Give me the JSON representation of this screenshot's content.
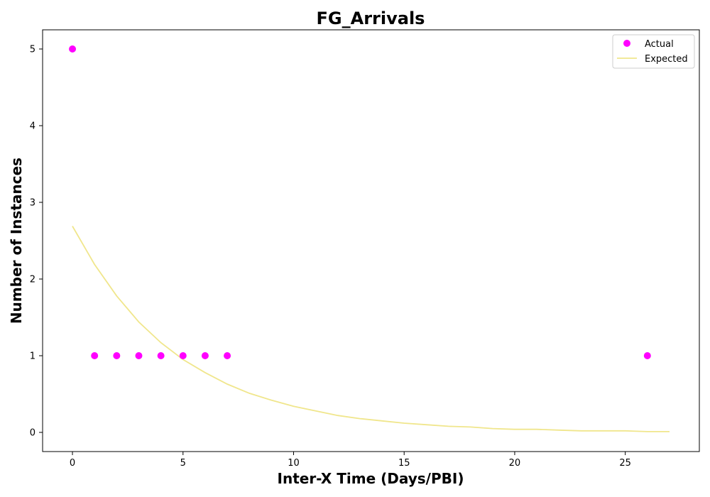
{
  "chart_data": {
    "type": "scatter",
    "title": "FG_Arrivals",
    "xlabel": "Inter-X Time (Days/PBI)",
    "ylabel": "Number of Instances",
    "xlim": [
      -1.35,
      28.35
    ],
    "ylim": [
      -0.25,
      5.25
    ],
    "xticks": [
      0,
      5,
      10,
      15,
      20,
      25
    ],
    "yticks": [
      0,
      1,
      2,
      3,
      4,
      5
    ],
    "legend_position": "top-right",
    "grid": false,
    "series": [
      {
        "name": "Actual",
        "kind": "scatter",
        "color": "#ff00ff",
        "x": [
          0,
          1,
          2,
          3,
          4,
          5,
          6,
          7,
          26
        ],
        "y": [
          5,
          1,
          1,
          1,
          1,
          1,
          1,
          1,
          1
        ]
      },
      {
        "name": "Expected",
        "kind": "line",
        "color": "#f0e68c",
        "x": [
          0,
          1,
          2,
          3,
          4,
          5,
          6,
          7,
          8,
          9,
          10,
          11,
          12,
          13,
          14,
          15,
          16,
          17,
          18,
          19,
          20,
          21,
          22,
          23,
          24,
          25,
          26,
          27
        ],
        "y": [
          2.69,
          2.19,
          1.78,
          1.44,
          1.17,
          0.95,
          0.78,
          0.63,
          0.51,
          0.42,
          0.34,
          0.28,
          0.22,
          0.18,
          0.15,
          0.12,
          0.1,
          0.08,
          0.07,
          0.05,
          0.04,
          0.04,
          0.03,
          0.02,
          0.02,
          0.02,
          0.01,
          0.01
        ]
      }
    ]
  }
}
